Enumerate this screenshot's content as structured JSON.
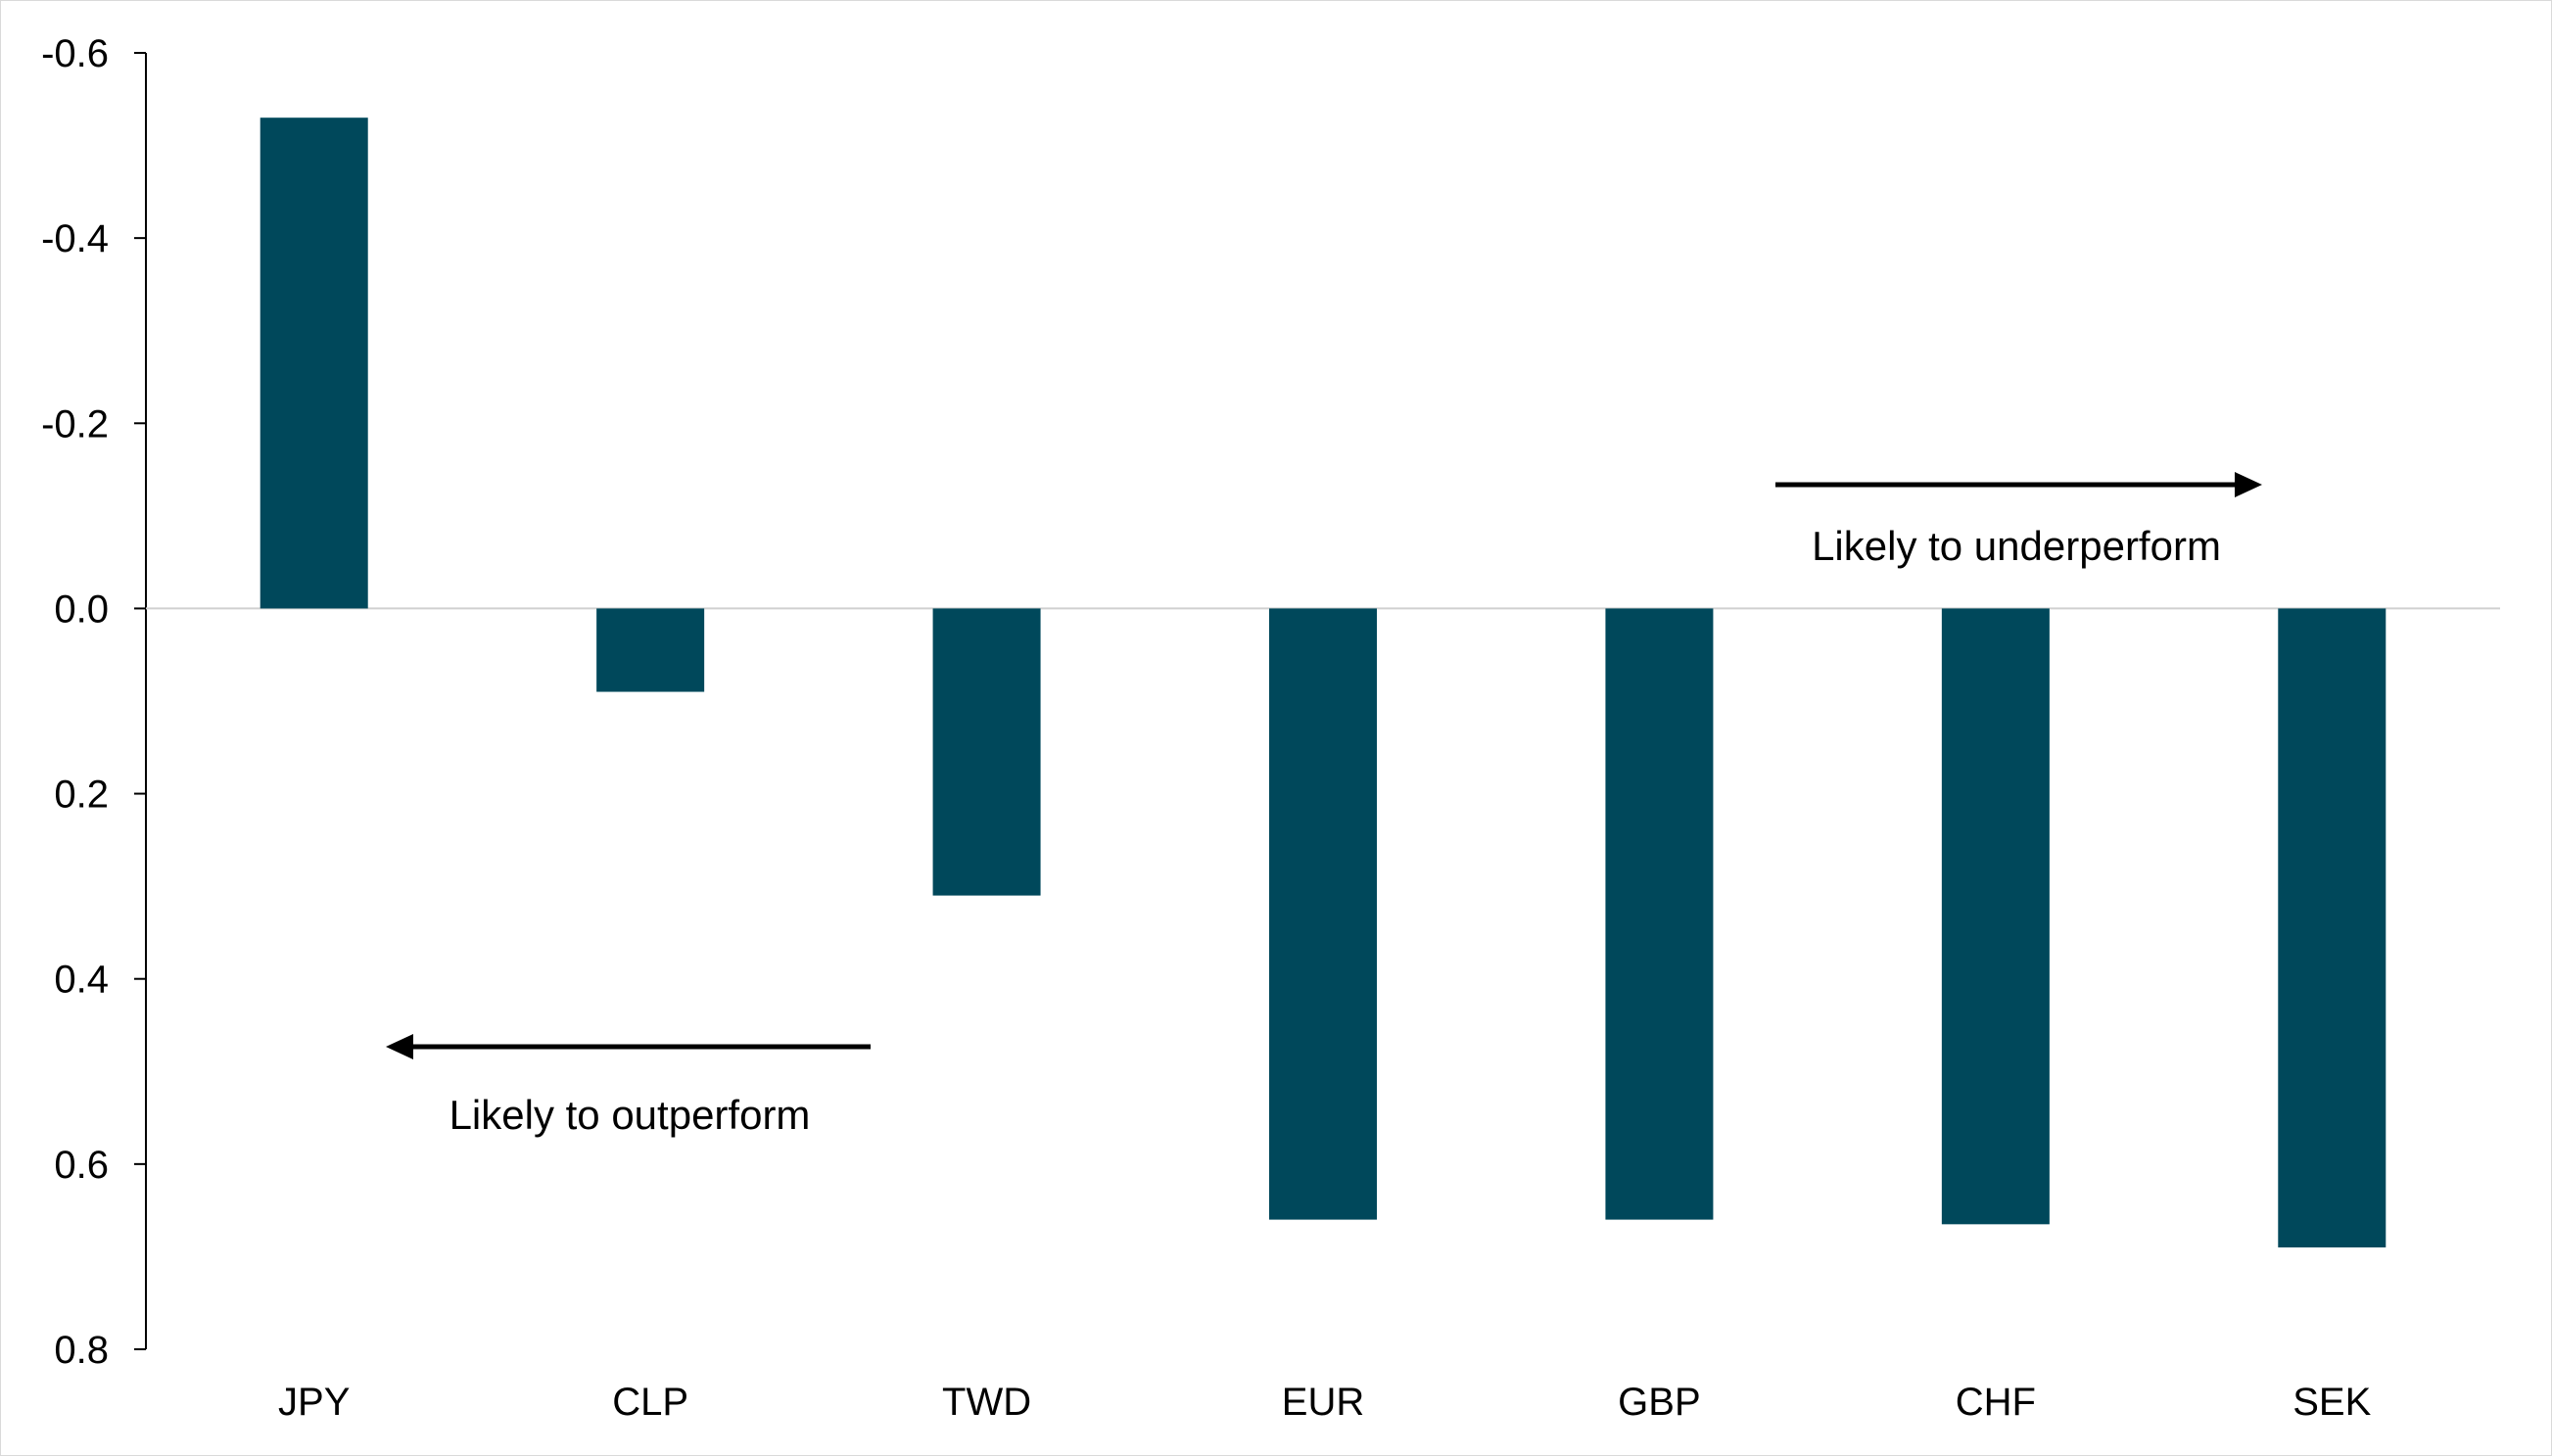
{
  "chart_data": {
    "type": "bar",
    "categories": [
      "JPY",
      "CLP",
      "TWD",
      "EUR",
      "GBP",
      "CHF",
      "SEK"
    ],
    "values": [
      -0.53,
      0.09,
      0.31,
      0.66,
      0.66,
      0.665,
      0.69
    ],
    "yaxis": {
      "inverted": true,
      "ylim": [
        -0.6,
        0.8
      ],
      "ticks": [
        -0.6,
        -0.4,
        -0.2,
        0.0,
        0.2,
        0.4,
        0.6,
        0.8
      ],
      "tick_labels": [
        "-0.6",
        "-0.4",
        "-0.2",
        "0.0",
        "0.2",
        "0.4",
        "0.6",
        "0.8"
      ]
    },
    "title": "",
    "xlabel": "",
    "ylabel": "",
    "grid": false,
    "bar_color": "#00485B",
    "annotations": [
      {
        "text": "Likely to outperform",
        "arrow": "left"
      },
      {
        "text": "Likely to underperform",
        "arrow": "right"
      }
    ]
  }
}
